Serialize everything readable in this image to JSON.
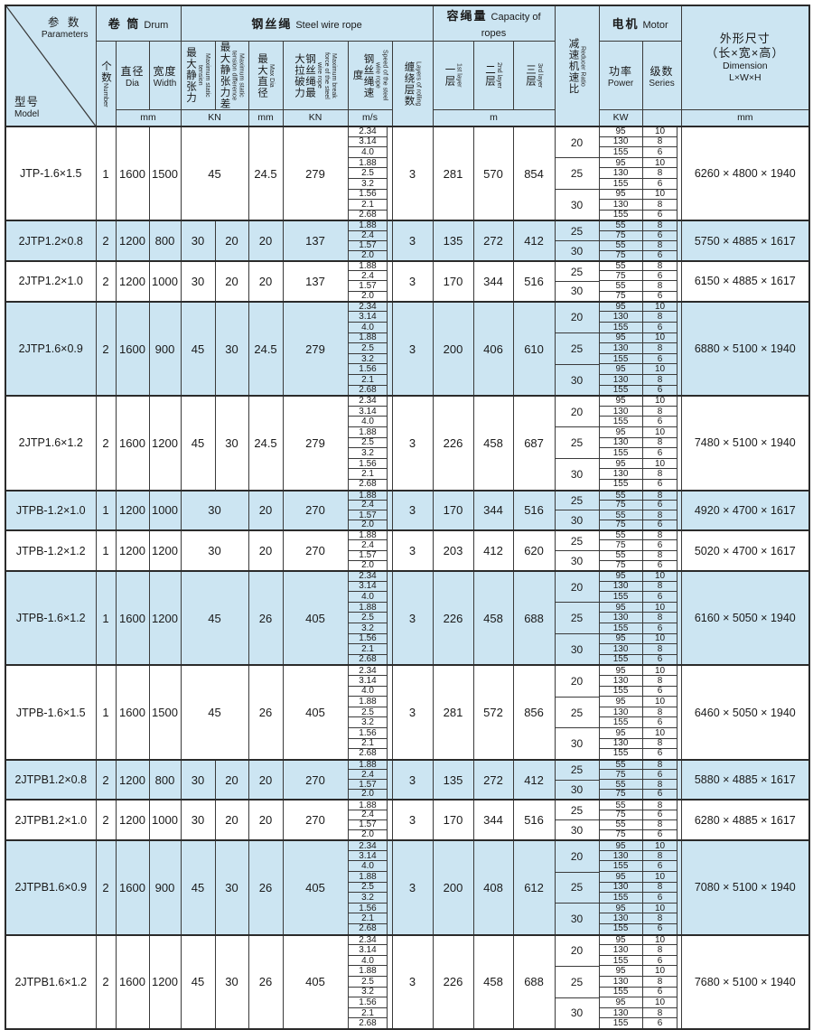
{
  "colors": {
    "accent_blue": "#cce5f2",
    "border": "#3a3a3a",
    "background": "#ffffff"
  },
  "header": {
    "corner": {
      "param_cn": "参 数",
      "param_en": "Parameters",
      "model_cn": "型号",
      "model_en": "Model"
    },
    "groups": {
      "drum": {
        "cn": "卷 筒",
        "en": "Drum"
      },
      "rope": {
        "cn": "钢丝绳",
        "en": "Steel wire rope"
      },
      "capacity": {
        "cn": "容绳量",
        "en": "Capacity of ropes"
      },
      "motor": {
        "cn": "电机",
        "en": "Motor"
      }
    },
    "cols": {
      "number": {
        "cn": "个数",
        "en": "Number"
      },
      "dia": {
        "cn": "直径",
        "en": "Dia"
      },
      "width": {
        "cn": "宽度",
        "en": "Width"
      },
      "tension": {
        "cn": "最大静张力",
        "en": "Maximum static tension"
      },
      "tension_diff": {
        "cn": "最大静张力差",
        "en": "Maximum static tension difference"
      },
      "max_dia": {
        "cn": "最大直径",
        "en": "Max Dia"
      },
      "break_force": {
        "cn": "钢丝绳最大拉破力",
        "en": "Maximum break force of the steel wire rope"
      },
      "speed": {
        "cn": "钢丝绳速度",
        "en": "Speed of the steel wire rope"
      },
      "layers": {
        "cn": "缠绕层数",
        "en": "Layers of rolling"
      },
      "layer1": {
        "cn": "一层",
        "en": "1st layer"
      },
      "layer2": {
        "cn": "二层",
        "en": "2nd layer"
      },
      "layer3": {
        "cn": "三层",
        "en": "3rd layer"
      },
      "ratio": {
        "cn": "减速机速比",
        "en": "Reducer Ratio"
      },
      "power": {
        "cn": "功率",
        "en": "Power"
      },
      "series": {
        "cn": "级数",
        "en": "Series"
      },
      "dimension": {
        "cn1": "外形尺寸",
        "cn2": "（长×宽×高）",
        "en1": "Dimension",
        "en2": "L×W×H"
      }
    },
    "units": {
      "drum_mm": "mm",
      "tension_kn": "KN",
      "maxdia_mm": "mm",
      "break_kn": "KN",
      "speed_ms": "m/s",
      "capacity_m": "m",
      "power_kw": "KW",
      "series_blank": "",
      "dim_mm": "mm"
    }
  },
  "rows": [
    {
      "model": "JTP-1.6×1.5",
      "number": "1",
      "dia": "1600",
      "width": "1500",
      "tension": "45",
      "diff": null,
      "max_dia": "24.5",
      "break_force": "279",
      "speeds": [
        "2.34",
        "3.14",
        "4.0",
        "1.88",
        "2.5",
        "3.2",
        "1.56",
        "2.1",
        "2.68"
      ],
      "layers": "3",
      "capacity": [
        "281",
        "570",
        "854"
      ],
      "groups": [
        {
          "ratio": "20",
          "power": [
            "95",
            "130",
            "155"
          ],
          "series": [
            "10",
            "8",
            "6"
          ]
        },
        {
          "ratio": "25",
          "power": [
            "95",
            "130",
            "155"
          ],
          "series": [
            "10",
            "8",
            "6"
          ]
        },
        {
          "ratio": "30",
          "power": [
            "95",
            "130",
            "155"
          ],
          "series": [
            "10",
            "8",
            "6"
          ]
        }
      ],
      "dimension": "6260 × 4800 × 1940",
      "shade": false
    },
    {
      "model": "2JTP1.2×0.8",
      "number": "2",
      "dia": "1200",
      "width": "800",
      "tension": "30",
      "diff": "20",
      "max_dia": "20",
      "break_force": "137",
      "speeds": [
        "1.88",
        "2.4",
        "1.57",
        "2.0"
      ],
      "layers": "3",
      "capacity": [
        "135",
        "272",
        "412"
      ],
      "groups": [
        {
          "ratio": "25",
          "power": [
            "55",
            "75"
          ],
          "series": [
            "8",
            "6"
          ]
        },
        {
          "ratio": "30",
          "power": [
            "55",
            "75"
          ],
          "series": [
            "8",
            "6"
          ]
        }
      ],
      "dimension": "5750 × 4885 × 1617",
      "shade": true
    },
    {
      "model": "2JTP1.2×1.0",
      "number": "2",
      "dia": "1200",
      "width": "1000",
      "tension": "30",
      "diff": "20",
      "max_dia": "20",
      "break_force": "137",
      "speeds": [
        "1.88",
        "2.4",
        "1.57",
        "2.0"
      ],
      "layers": "3",
      "capacity": [
        "170",
        "344",
        "516"
      ],
      "groups": [
        {
          "ratio": "25",
          "power": [
            "55",
            "75"
          ],
          "series": [
            "8",
            "6"
          ]
        },
        {
          "ratio": "30",
          "power": [
            "55",
            "75"
          ],
          "series": [
            "8",
            "6"
          ]
        }
      ],
      "dimension": "6150 × 4885 × 1617",
      "shade": false
    },
    {
      "model": "2JTP1.6×0.9",
      "number": "2",
      "dia": "1600",
      "width": "900",
      "tension": "45",
      "diff": "30",
      "max_dia": "24.5",
      "break_force": "279",
      "speeds": [
        "2.34",
        "3.14",
        "4.0",
        "1.88",
        "2.5",
        "3.2",
        "1.56",
        "2.1",
        "2.68"
      ],
      "layers": "3",
      "capacity": [
        "200",
        "406",
        "610"
      ],
      "groups": [
        {
          "ratio": "20",
          "power": [
            "95",
            "130",
            "155"
          ],
          "series": [
            "10",
            "8",
            "6"
          ]
        },
        {
          "ratio": "25",
          "power": [
            "95",
            "130",
            "155"
          ],
          "series": [
            "10",
            "8",
            "6"
          ]
        },
        {
          "ratio": "30",
          "power": [
            "95",
            "130",
            "155"
          ],
          "series": [
            "10",
            "8",
            "6"
          ]
        }
      ],
      "dimension": "6880 × 5100 × 1940",
      "shade": true
    },
    {
      "model": "2JTP1.6×1.2",
      "number": "2",
      "dia": "1600",
      "width": "1200",
      "tension": "45",
      "diff": "30",
      "max_dia": "24.5",
      "break_force": "279",
      "speeds": [
        "2.34",
        "3.14",
        "4.0",
        "1.88",
        "2.5",
        "3.2",
        "1.56",
        "2.1",
        "2.68"
      ],
      "layers": "3",
      "capacity": [
        "226",
        "458",
        "687"
      ],
      "groups": [
        {
          "ratio": "20",
          "power": [
            "95",
            "130",
            "155"
          ],
          "series": [
            "10",
            "8",
            "6"
          ]
        },
        {
          "ratio": "25",
          "power": [
            "95",
            "130",
            "155"
          ],
          "series": [
            "10",
            "8",
            "6"
          ]
        },
        {
          "ratio": "30",
          "power": [
            "95",
            "130",
            "155"
          ],
          "series": [
            "10",
            "8",
            "6"
          ]
        }
      ],
      "dimension": "7480 × 5100 × 1940",
      "shade": false
    },
    {
      "model": "JTPB-1.2×1.0",
      "number": "1",
      "dia": "1200",
      "width": "1000",
      "tension": "30",
      "diff": null,
      "max_dia": "20",
      "break_force": "270",
      "speeds": [
        "1.88",
        "2.4",
        "1.57",
        "2.0"
      ],
      "layers": "3",
      "capacity": [
        "170",
        "344",
        "516"
      ],
      "groups": [
        {
          "ratio": "25",
          "power": [
            "55",
            "75"
          ],
          "series": [
            "8",
            "6"
          ]
        },
        {
          "ratio": "30",
          "power": [
            "55",
            "75"
          ],
          "series": [
            "8",
            "6"
          ]
        }
      ],
      "dimension": "4920 × 4700 × 1617",
      "shade": true
    },
    {
      "model": "JTPB-1.2×1.2",
      "number": "1",
      "dia": "1200",
      "width": "1200",
      "tension": "30",
      "diff": null,
      "max_dia": "20",
      "break_force": "270",
      "speeds": [
        "1.88",
        "2.4",
        "1.57",
        "2.0"
      ],
      "layers": "3",
      "capacity": [
        "203",
        "412",
        "620"
      ],
      "groups": [
        {
          "ratio": "25",
          "power": [
            "55",
            "75"
          ],
          "series": [
            "8",
            "6"
          ]
        },
        {
          "ratio": "30",
          "power": [
            "55",
            "75"
          ],
          "series": [
            "8",
            "6"
          ]
        }
      ],
      "dimension": "5020 × 4700 × 1617",
      "shade": false
    },
    {
      "model": "JTPB-1.6×1.2",
      "number": "1",
      "dia": "1600",
      "width": "1200",
      "tension": "45",
      "diff": null,
      "max_dia": "26",
      "break_force": "405",
      "speeds": [
        "2.34",
        "3.14",
        "4.0",
        "1.88",
        "2.5",
        "3.2",
        "1.56",
        "2.1",
        "2.68"
      ],
      "layers": "3",
      "capacity": [
        "226",
        "458",
        "688"
      ],
      "groups": [
        {
          "ratio": "20",
          "power": [
            "95",
            "130",
            "155"
          ],
          "series": [
            "10",
            "8",
            "6"
          ]
        },
        {
          "ratio": "25",
          "power": [
            "95",
            "130",
            "155"
          ],
          "series": [
            "10",
            "8",
            "6"
          ]
        },
        {
          "ratio": "30",
          "power": [
            "95",
            "130",
            "155"
          ],
          "series": [
            "10",
            "8",
            "6"
          ]
        }
      ],
      "dimension": "6160 × 5050 × 1940",
      "shade": true
    },
    {
      "model": "JTPB-1.6×1.5",
      "number": "1",
      "dia": "1600",
      "width": "1500",
      "tension": "45",
      "diff": null,
      "max_dia": "26",
      "break_force": "405",
      "speeds": [
        "2.34",
        "3.14",
        "4.0",
        "1.88",
        "2.5",
        "3.2",
        "1.56",
        "2.1",
        "2.68"
      ],
      "layers": "3",
      "capacity": [
        "281",
        "572",
        "856"
      ],
      "groups": [
        {
          "ratio": "20",
          "power": [
            "95",
            "130",
            "155"
          ],
          "series": [
            "10",
            "8",
            "6"
          ]
        },
        {
          "ratio": "25",
          "power": [
            "95",
            "130",
            "155"
          ],
          "series": [
            "10",
            "8",
            "6"
          ]
        },
        {
          "ratio": "30",
          "power": [
            "95",
            "130",
            "155"
          ],
          "series": [
            "10",
            "8",
            "6"
          ]
        }
      ],
      "dimension": "6460 × 5050 × 1940",
      "shade": false
    },
    {
      "model": "2JTPB1.2×0.8",
      "number": "2",
      "dia": "1200",
      "width": "800",
      "tension": "30",
      "diff": "20",
      "max_dia": "20",
      "break_force": "270",
      "speeds": [
        "1.88",
        "2.4",
        "1.57",
        "2.0"
      ],
      "layers": "3",
      "capacity": [
        "135",
        "272",
        "412"
      ],
      "groups": [
        {
          "ratio": "25",
          "power": [
            "55",
            "75"
          ],
          "series": [
            "8",
            "6"
          ]
        },
        {
          "ratio": "30",
          "power": [
            "55",
            "75"
          ],
          "series": [
            "8",
            "6"
          ]
        }
      ],
      "dimension": "5880 × 4885 × 1617",
      "shade": true
    },
    {
      "model": "2JTPB1.2×1.0",
      "number": "2",
      "dia": "1200",
      "width": "1000",
      "tension": "30",
      "diff": "20",
      "max_dia": "20",
      "break_force": "270",
      "speeds": [
        "1.88",
        "2.4",
        "1.57",
        "2.0"
      ],
      "layers": "3",
      "capacity": [
        "170",
        "344",
        "516"
      ],
      "groups": [
        {
          "ratio": "25",
          "power": [
            "55",
            "75"
          ],
          "series": [
            "8",
            "6"
          ]
        },
        {
          "ratio": "30",
          "power": [
            "55",
            "75"
          ],
          "series": [
            "8",
            "6"
          ]
        }
      ],
      "dimension": "6280 × 4885 × 1617",
      "shade": false
    },
    {
      "model": "2JTPB1.6×0.9",
      "number": "2",
      "dia": "1600",
      "width": "900",
      "tension": "45",
      "diff": "30",
      "max_dia": "26",
      "break_force": "405",
      "speeds": [
        "2.34",
        "3.14",
        "4.0",
        "1.88",
        "2.5",
        "3.2",
        "1.56",
        "2.1",
        "2.68"
      ],
      "layers": "3",
      "capacity": [
        "200",
        "408",
        "612"
      ],
      "groups": [
        {
          "ratio": "20",
          "power": [
            "95",
            "130",
            "155"
          ],
          "series": [
            "10",
            "8",
            "6"
          ]
        },
        {
          "ratio": "25",
          "power": [
            "95",
            "130",
            "155"
          ],
          "series": [
            "10",
            "8",
            "6"
          ]
        },
        {
          "ratio": "30",
          "power": [
            "95",
            "130",
            "155"
          ],
          "series": [
            "10",
            "8",
            "6"
          ]
        }
      ],
      "dimension": "7080 × 5100 × 1940",
      "shade": true
    },
    {
      "model": "2JTPB1.6×1.2",
      "number": "2",
      "dia": "1600",
      "width": "1200",
      "tension": "45",
      "diff": "30",
      "max_dia": "26",
      "break_force": "405",
      "speeds": [
        "2.34",
        "3.14",
        "4.0",
        "1.88",
        "2.5",
        "3.2",
        "1.56",
        "2.1",
        "2.68"
      ],
      "layers": "3",
      "capacity": [
        "226",
        "458",
        "688"
      ],
      "groups": [
        {
          "ratio": "20",
          "power": [
            "95",
            "130",
            "155"
          ],
          "series": [
            "10",
            "8",
            "6"
          ]
        },
        {
          "ratio": "25",
          "power": [
            "95",
            "130",
            "155"
          ],
          "series": [
            "10",
            "8",
            "6"
          ]
        },
        {
          "ratio": "30",
          "power": [
            "95",
            "130",
            "155"
          ],
          "series": [
            "10",
            "8",
            "6"
          ]
        }
      ],
      "dimension": "7680 × 5100 × 1940",
      "shade": false
    }
  ]
}
